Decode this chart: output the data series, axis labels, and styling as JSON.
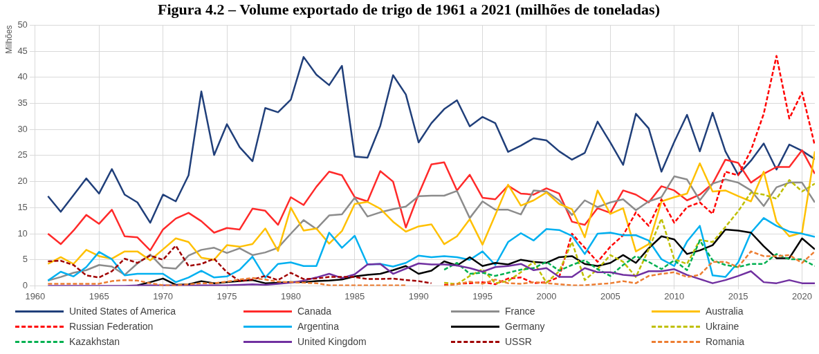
{
  "chart_data": {
    "type": "line",
    "title": "Figura 4.2 – Volume exportado de trigo de 1961 a 2021 (milhões de toneladas)",
    "ylabel": "Milhões",
    "x": [
      1961,
      1962,
      1963,
      1964,
      1965,
      1966,
      1967,
      1968,
      1969,
      1970,
      1971,
      1972,
      1973,
      1974,
      1975,
      1976,
      1977,
      1978,
      1979,
      1980,
      1981,
      1982,
      1983,
      1984,
      1985,
      1986,
      1987,
      1988,
      1989,
      1990,
      1991,
      1992,
      1993,
      1994,
      1995,
      1996,
      1997,
      1998,
      1999,
      2000,
      2001,
      2002,
      2003,
      2004,
      2005,
      2006,
      2007,
      2008,
      2009,
      2010,
      2011,
      2012,
      2013,
      2014,
      2015,
      2016,
      2017,
      2018,
      2019,
      2020,
      2021
    ],
    "xlim": [
      1960,
      2021
    ],
    "xticks": [
      1960,
      1965,
      1970,
      1975,
      1980,
      1985,
      1990,
      1995,
      2000,
      2005,
      2010,
      2015,
      2020
    ],
    "ylim": [
      0,
      50
    ],
    "yticks": [
      0,
      5,
      10,
      15,
      20,
      25,
      30,
      35,
      40,
      45,
      50
    ],
    "grid": true,
    "legend": "bottom",
    "marker": "none",
    "series": [
      {
        "name": "United States of America",
        "color": "#203f7a",
        "line_style": "solid",
        "values": [
          17.2,
          14.2,
          17.4,
          20.6,
          17.7,
          22.4,
          17.5,
          16.0,
          12.1,
          17.5,
          16.2,
          21.2,
          37.3,
          25.1,
          31.0,
          26.6,
          23.9,
          34.1,
          33.3,
          35.7,
          43.9,
          40.5,
          38.5,
          42.2,
          24.8,
          24.6,
          30.7,
          40.4,
          36.7,
          27.5,
          31.2,
          33.9,
          35.6,
          30.6,
          32.4,
          31.2,
          25.7,
          26.9,
          28.3,
          27.9,
          25.8,
          24.2,
          25.5,
          31.5,
          27.5,
          23.2,
          33.0,
          30.2,
          21.9,
          27.6,
          32.8,
          25.8,
          33.2,
          25.8,
          21.3,
          24.0,
          27.3,
          22.3,
          27.1,
          25.9,
          24.3
        ]
      },
      {
        "name": "Canada",
        "color": "#ff2a2a",
        "line_style": "solid",
        "values": [
          10.0,
          8.0,
          10.6,
          13.6,
          11.9,
          14.6,
          9.5,
          9.3,
          6.8,
          10.8,
          12.9,
          14.0,
          12.4,
          10.2,
          11.1,
          10.8,
          14.8,
          14.4,
          11.7,
          17.0,
          15.5,
          19.0,
          21.9,
          21.2,
          17.0,
          16.2,
          22.0,
          20.0,
          11.2,
          17.6,
          23.3,
          23.7,
          18.3,
          21.3,
          16.9,
          16.6,
          19.2,
          17.7,
          17.5,
          18.7,
          17.7,
          12.3,
          11.7,
          14.9,
          14.0,
          18.3,
          17.5,
          16.0,
          19.1,
          18.3,
          16.4,
          17.5,
          19.6,
          24.2,
          23.6,
          19.8,
          21.5,
          22.8,
          22.8,
          26.0,
          21.5
        ]
      },
      {
        "name": "France",
        "color": "#8c8c8c",
        "line_style": "solid",
        "values": [
          1.0,
          1.7,
          2.5,
          3.0,
          4.0,
          3.7,
          2.1,
          4.3,
          6.0,
          3.5,
          3.3,
          5.8,
          6.9,
          7.3,
          6.3,
          7.2,
          5.9,
          6.4,
          7.3,
          10.0,
          12.6,
          10.9,
          13.5,
          13.7,
          16.9,
          13.3,
          14.1,
          14.7,
          15.2,
          17.2,
          17.3,
          17.3,
          18.2,
          13.0,
          16.2,
          14.6,
          14.6,
          13.7,
          18.3,
          18.1,
          16.4,
          13.6,
          16.4,
          15.1,
          16.0,
          16.6,
          14.5,
          16.2,
          17.0,
          21.0,
          20.4,
          16.4,
          19.6,
          20.4,
          19.8,
          18.3,
          15.3,
          18.9,
          19.8,
          19.8,
          16.0
        ]
      },
      {
        "name": "Australia",
        "color": "#ffc000",
        "line_style": "solid",
        "values": [
          4.2,
          5.5,
          4.2,
          6.9,
          5.7,
          5.2,
          6.6,
          6.6,
          4.9,
          7.0,
          9.1,
          8.4,
          5.4,
          5.0,
          7.8,
          7.5,
          8.0,
          11.0,
          6.7,
          15.0,
          10.6,
          11.0,
          8.1,
          10.5,
          15.7,
          16.1,
          14.8,
          12.3,
          10.4,
          11.4,
          11.8,
          8.0,
          9.5,
          12.8,
          7.9,
          13.6,
          19.4,
          15.4,
          16.4,
          17.9,
          15.7,
          14.7,
          9.3,
          18.3,
          13.8,
          14.9,
          6.6,
          8.0,
          16.2,
          17.0,
          17.7,
          23.5,
          18.1,
          18.3,
          17.2,
          16.2,
          21.9,
          12.3,
          9.5,
          10.2,
          25.8
        ]
      },
      {
        "name": "Russian Federation",
        "color": "#ff0000",
        "line_style": "dashed",
        "values": [
          null,
          null,
          null,
          null,
          null,
          null,
          null,
          null,
          null,
          null,
          null,
          null,
          null,
          null,
          null,
          null,
          null,
          null,
          null,
          null,
          null,
          null,
          null,
          null,
          null,
          null,
          null,
          null,
          null,
          null,
          null,
          0.2,
          0.4,
          0.5,
          0.7,
          0.3,
          1.4,
          1.6,
          0.5,
          0.7,
          1.7,
          10.0,
          7.3,
          4.6,
          7.5,
          9.7,
          14.1,
          11.5,
          16.6,
          12.1,
          15.1,
          16.0,
          13.8,
          21.9,
          21.2,
          26.0,
          33.0,
          44.1,
          32.1,
          37.1,
          26.9
        ]
      },
      {
        "name": "Argentina",
        "color": "#00b0f0",
        "line_style": "solid",
        "values": [
          1.0,
          2.7,
          1.8,
          3.6,
          6.5,
          5.1,
          2.0,
          2.3,
          2.3,
          2.3,
          0.7,
          1.6,
          2.9,
          1.6,
          1.8,
          3.1,
          5.6,
          1.6,
          4.2,
          4.5,
          3.8,
          3.8,
          10.2,
          7.3,
          9.6,
          4.1,
          4.2,
          3.7,
          4.4,
          5.8,
          5.5,
          5.7,
          5.5,
          5.0,
          6.6,
          4.0,
          8.4,
          10.1,
          8.7,
          10.9,
          10.7,
          9.6,
          6.1,
          10.0,
          10.2,
          9.7,
          9.7,
          8.7,
          5.1,
          3.8,
          8.5,
          11.5,
          2.0,
          1.7,
          4.5,
          10.2,
          13.0,
          11.5,
          10.4,
          10.0,
          9.4
        ]
      },
      {
        "name": "Germany",
        "color": "#000000",
        "line_style": "solid",
        "values": [
          null,
          null,
          null,
          null,
          null,
          null,
          null,
          0.1,
          0.7,
          1.4,
          0.2,
          0.3,
          0.9,
          0.5,
          0.7,
          0.9,
          1.1,
          0.5,
          0.6,
          0.7,
          0.7,
          0.9,
          1.0,
          1.2,
          1.8,
          2.1,
          2.3,
          3.0,
          3.8,
          2.3,
          2.9,
          4.7,
          3.9,
          5.5,
          3.8,
          4.4,
          4.1,
          5.0,
          4.6,
          4.4,
          5.5,
          5.7,
          4.2,
          3.8,
          4.4,
          5.9,
          4.4,
          7.2,
          9.5,
          8.9,
          6.1,
          6.8,
          7.8,
          10.8,
          10.6,
          10.2,
          7.6,
          5.3,
          5.3,
          9.1,
          7.0
        ]
      },
      {
        "name": "Ukraine",
        "color": "#bfbf00",
        "line_style": "dashed",
        "values": [
          null,
          null,
          null,
          null,
          null,
          null,
          null,
          null,
          null,
          null,
          null,
          null,
          null,
          null,
          null,
          null,
          null,
          null,
          null,
          null,
          null,
          null,
          null,
          null,
          null,
          null,
          null,
          null,
          null,
          null,
          null,
          0.6,
          0.3,
          1.9,
          3.2,
          0.5,
          0.9,
          2.6,
          4.6,
          0.6,
          2.8,
          8.4,
          1.1,
          3.2,
          5.9,
          4.6,
          1.7,
          7.0,
          12.9,
          5.1,
          4.2,
          8.8,
          8.4,
          11.3,
          14.3,
          17.9,
          17.5,
          16.7,
          20.3,
          18.1,
          19.6
        ]
      },
      {
        "name": "Kazakhstan",
        "color": "#00b050",
        "line_style": "dashed",
        "values": [
          null,
          null,
          null,
          null,
          null,
          null,
          null,
          null,
          null,
          null,
          null,
          null,
          null,
          null,
          null,
          null,
          null,
          null,
          null,
          null,
          null,
          null,
          null,
          null,
          null,
          null,
          null,
          null,
          null,
          null,
          null,
          3.1,
          4.4,
          2.3,
          2.5,
          1.9,
          2.5,
          3.1,
          3.4,
          4.6,
          2.9,
          4.0,
          4.9,
          3.2,
          1.9,
          4.0,
          5.7,
          4.6,
          3.2,
          4.9,
          3.0,
          8.7,
          4.9,
          4.0,
          3.6,
          4.2,
          4.2,
          6.1,
          5.1,
          5.1,
          3.8
        ]
      },
      {
        "name": "United Kingdom",
        "color": "#7030a0",
        "line_style": "solid",
        "values": [
          0.0,
          0.0,
          0.0,
          0.0,
          0.0,
          0.0,
          0.0,
          0.1,
          0.1,
          0.1,
          0.1,
          0.1,
          0.1,
          0.1,
          0.1,
          0.2,
          0.3,
          0.2,
          0.4,
          0.6,
          1.0,
          1.6,
          2.3,
          1.5,
          2.2,
          4.1,
          4.2,
          2.3,
          3.3,
          4.3,
          4.1,
          4.1,
          3.9,
          3.4,
          2.7,
          3.6,
          3.8,
          4.2,
          3.0,
          3.4,
          1.7,
          1.7,
          3.4,
          2.6,
          2.6,
          2.1,
          1.9,
          2.8,
          2.8,
          3.2,
          2.1,
          1.3,
          0.5,
          1.1,
          1.9,
          2.8,
          0.7,
          0.5,
          1.1,
          0.5,
          0.5
        ]
      },
      {
        "name": "USSR",
        "color": "#a00000",
        "line_style": "dashed",
        "values": [
          4.7,
          4.8,
          4.0,
          2.0,
          1.6,
          2.8,
          5.2,
          4.4,
          5.8,
          5.0,
          7.7,
          3.8,
          4.2,
          5.2,
          2.6,
          0.9,
          1.2,
          1.9,
          1.1,
          2.5,
          1.3,
          1.4,
          1.7,
          1.7,
          1.7,
          1.3,
          1.3,
          1.4,
          1.1,
          0.9,
          0.5,
          null,
          null,
          null,
          null,
          null,
          null,
          null,
          null,
          null,
          null,
          null,
          null,
          null,
          null,
          null,
          null,
          null,
          null,
          null,
          null,
          null,
          null,
          null,
          null,
          null,
          null,
          null,
          null,
          null,
          null
        ]
      },
      {
        "name": "Romania",
        "color": "#ed7d31",
        "line_style": "dashed",
        "values": [
          0.4,
          0.4,
          0.4,
          0.4,
          0.4,
          0.9,
          1.1,
          1.0,
          0.5,
          0.1,
          0.1,
          0.3,
          0.5,
          0.5,
          0.8,
          1.2,
          1.5,
          1.2,
          0.8,
          0.7,
          0.6,
          0.5,
          0.1,
          0.1,
          0.1,
          0.1,
          0.1,
          0.1,
          0.1,
          null,
          null,
          0.0,
          0.3,
          0.8,
          0.4,
          1.2,
          0.5,
          0.4,
          0.7,
          0.5,
          0.3,
          0.1,
          0.1,
          0.3,
          0.5,
          0.9,
          0.5,
          1.9,
          2.3,
          2.6,
          1.7,
          2.1,
          4.6,
          4.6,
          3.6,
          6.6,
          5.7,
          5.7,
          5.9,
          4.4,
          6.6
        ]
      }
    ]
  }
}
